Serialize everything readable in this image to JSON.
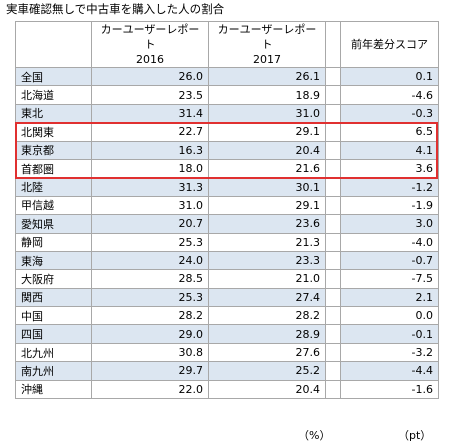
{
  "title": "実車確認無しで中古車を購入した人の割合",
  "headers": {
    "col1": "カーユーザーレポート\n2016",
    "col2": "カーユーザーレポート\n2017",
    "col3": "前年差分スコア"
  },
  "rows": [
    {
      "region": "全国",
      "v2016": "26.0",
      "v2017": "26.1",
      "diff": "0.1"
    },
    {
      "region": "北海道",
      "v2016": "23.5",
      "v2017": "18.9",
      "diff": "-4.6"
    },
    {
      "region": "東北",
      "v2016": "31.4",
      "v2017": "31.0",
      "diff": "-0.3"
    },
    {
      "region": "北関東",
      "v2016": "22.7",
      "v2017": "29.1",
      "diff": "6.5"
    },
    {
      "region": "東京都",
      "v2016": "16.3",
      "v2017": "20.4",
      "diff": "4.1"
    },
    {
      "region": "首都圏",
      "v2016": "18.0",
      "v2017": "21.6",
      "diff": "3.6"
    },
    {
      "region": "北陸",
      "v2016": "31.3",
      "v2017": "30.1",
      "diff": "-1.2"
    },
    {
      "region": "甲信越",
      "v2016": "31.0",
      "v2017": "29.1",
      "diff": "-1.9"
    },
    {
      "region": "愛知県",
      "v2016": "20.7",
      "v2017": "23.6",
      "diff": "3.0"
    },
    {
      "region": "静岡",
      "v2016": "25.3",
      "v2017": "21.3",
      "diff": "-4.0"
    },
    {
      "region": "東海",
      "v2016": "24.0",
      "v2017": "23.3",
      "diff": "-0.7"
    },
    {
      "region": "大阪府",
      "v2016": "28.5",
      "v2017": "21.0",
      "diff": "-7.5"
    },
    {
      "region": "関西",
      "v2016": "25.3",
      "v2017": "27.4",
      "diff": "2.1"
    },
    {
      "region": "中国",
      "v2016": "28.2",
      "v2017": "28.2",
      "diff": "0.0"
    },
    {
      "region": "四国",
      "v2016": "29.0",
      "v2017": "28.9",
      "diff": "-0.1"
    },
    {
      "region": "北九州",
      "v2016": "30.8",
      "v2017": "27.6",
      "diff": "-3.2"
    },
    {
      "region": "南九州",
      "v2016": "29.7",
      "v2017": "25.2",
      "diff": "-4.4"
    },
    {
      "region": "沖縄",
      "v2016": "22.0",
      "v2017": "20.4",
      "diff": "-1.6"
    }
  ],
  "highlighted_regions": [
    "北関東",
    "東京都",
    "首都圏"
  ],
  "units": {
    "percent": "（%）",
    "points": "（pt）"
  },
  "colors": {
    "row_shade": "#dce6f1",
    "highlight_border": "#e03030",
    "grid": "#a8a8a8"
  }
}
